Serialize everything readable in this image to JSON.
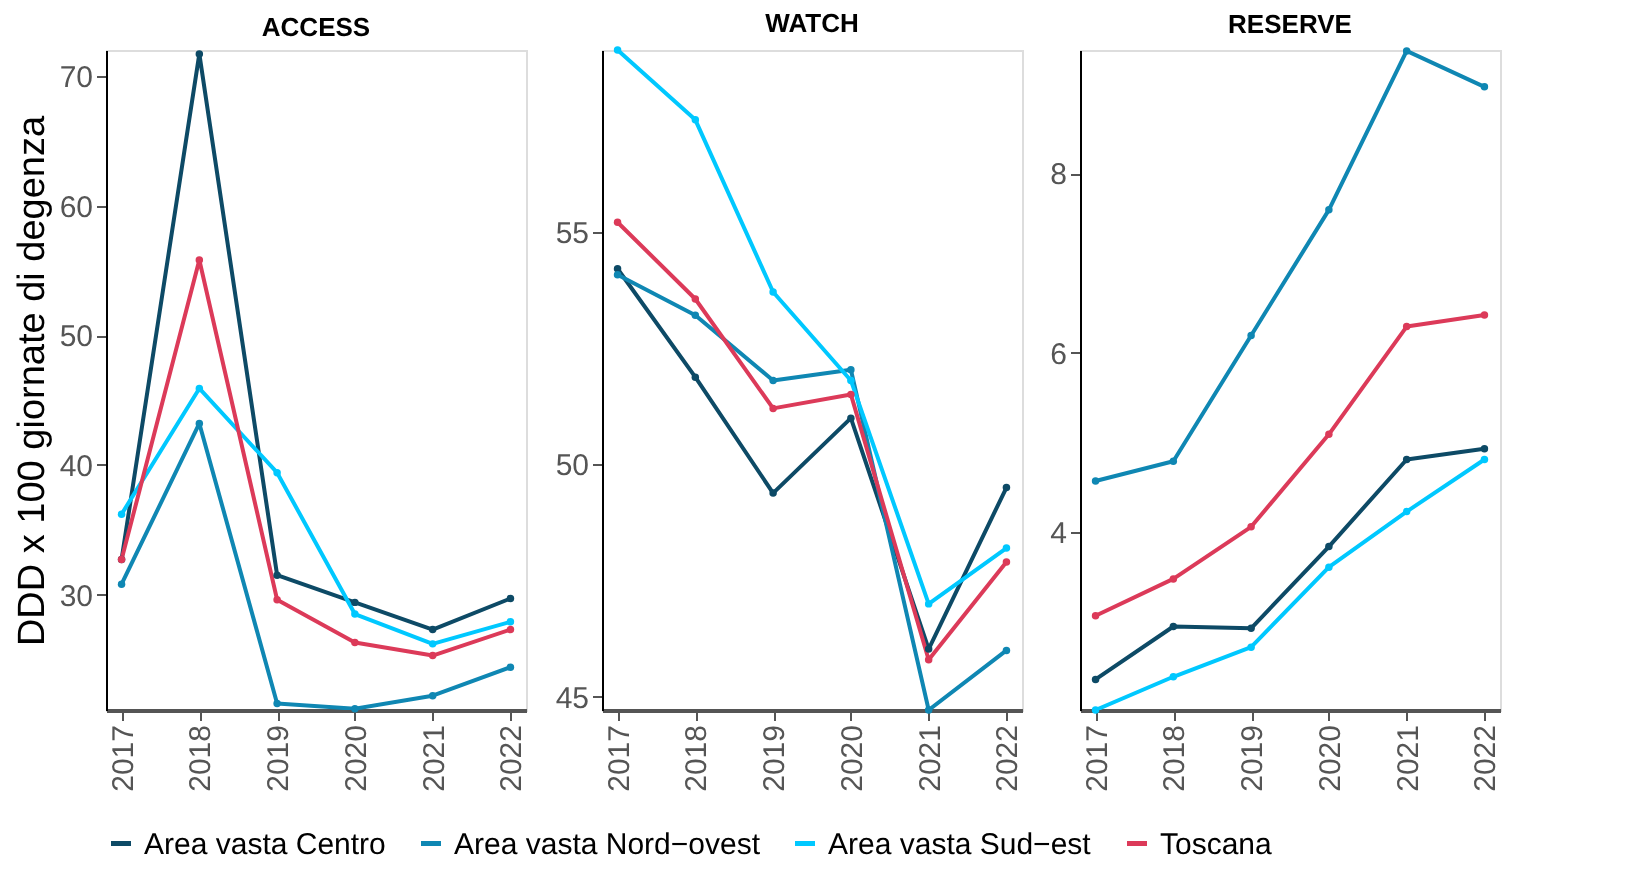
{
  "chart_data": [
    {
      "type": "line",
      "title": "ACCESS",
      "ylabel": "DDD x 100 giornate di degenza",
      "categories": [
        "2017",
        "2018",
        "2019",
        "2020",
        "2021",
        "2022"
      ],
      "ylim": [
        21.1,
        72
      ],
      "yticks": [
        30,
        40,
        50,
        60,
        70
      ],
      "grid": false,
      "marker": "circle",
      "legend": "bottom",
      "series": [
        {
          "name": "Area vasta Centro",
          "color": "#0d4a66",
          "values": [
            32.7,
            71.7,
            31.5,
            29.4,
            27.3,
            29.7
          ]
        },
        {
          "name": "Area vasta Nord−ovest",
          "color": "#0f87b3",
          "values": [
            30.8,
            43.2,
            21.6,
            21.2,
            22.2,
            24.4
          ]
        },
        {
          "name": "Area vasta Sud−est",
          "color": "#00c8ff",
          "values": [
            36.2,
            45.9,
            39.4,
            28.5,
            26.2,
            27.9
          ]
        },
        {
          "name": "Toscana",
          "color": "#dc3a59",
          "values": [
            32.7,
            55.8,
            29.6,
            26.3,
            25.3,
            27.3
          ]
        }
      ]
    },
    {
      "type": "line",
      "title": "WATCH",
      "categories": [
        "2017",
        "2018",
        "2019",
        "2020",
        "2021",
        "2022"
      ],
      "ylim": [
        44.72,
        58.9
      ],
      "yticks": [
        45,
        50,
        55
      ],
      "grid": false,
      "marker": "circle",
      "series": [
        {
          "name": "Area vasta Centro",
          "color": "#0d4a66",
          "values": [
            54.2,
            51.87,
            49.38,
            50.99,
            46.03,
            49.5
          ]
        },
        {
          "name": "Area vasta Nord−ovest",
          "color": "#0f87b3",
          "values": [
            54.07,
            53.2,
            51.8,
            52.03,
            44.72,
            46.0
          ]
        },
        {
          "name": "Area vasta Sud−est",
          "color": "#00c8ff",
          "values": [
            58.9,
            57.4,
            53.7,
            51.8,
            47.0,
            48.2
          ]
        },
        {
          "name": "Toscana",
          "color": "#dc3a59",
          "values": [
            55.2,
            53.55,
            51.2,
            51.5,
            45.8,
            47.9
          ]
        }
      ]
    },
    {
      "type": "line",
      "title": "RESERVE",
      "categories": [
        "2017",
        "2018",
        "2019",
        "2020",
        "2021",
        "2022"
      ],
      "ylim": [
        2.02,
        9.37
      ],
      "yticks": [
        4,
        6,
        8
      ],
      "grid": false,
      "marker": "circle",
      "series": [
        {
          "name": "Area vasta Centro",
          "color": "#0d4a66",
          "values": [
            2.36,
            2.95,
            2.93,
            3.84,
            4.81,
            4.93
          ]
        },
        {
          "name": "Area vasta Nord−ovest",
          "color": "#0f87b3",
          "values": [
            4.57,
            4.79,
            6.19,
            7.59,
            9.36,
            8.96
          ]
        },
        {
          "name": "Area vasta Sud−est",
          "color": "#00c8ff",
          "values": [
            2.02,
            2.39,
            2.72,
            3.61,
            4.23,
            4.81
          ]
        },
        {
          "name": "Toscana",
          "color": "#dc3a59",
          "values": [
            3.07,
            3.48,
            4.06,
            5.09,
            6.29,
            6.42
          ]
        }
      ]
    }
  ]
}
